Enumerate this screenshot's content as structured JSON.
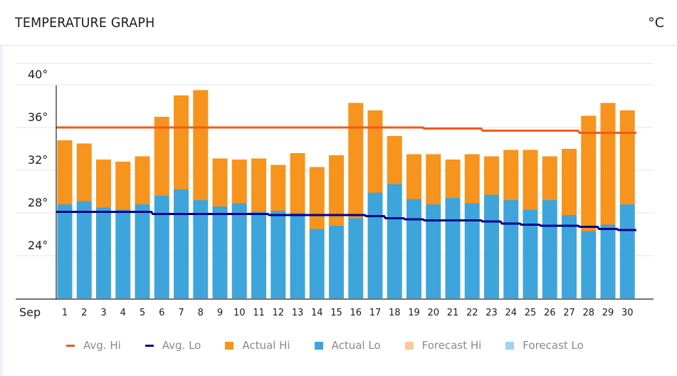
{
  "header": {
    "title": "TEMPERATURE GRAPH",
    "unit": "°C"
  },
  "colors": {
    "avg_hi": "#f05a1e",
    "avg_lo": "#00008b",
    "actual_hi": "#f7941d",
    "actual_lo": "#3da5dc",
    "forecast_hi": "#fbc89a",
    "forecast_lo": "#9fd3ee",
    "grid": "#e6e6e6"
  },
  "legend": [
    {
      "key": "avg_hi",
      "label": "Avg. Hi",
      "kind": "line"
    },
    {
      "key": "avg_lo",
      "label": "Avg. Lo",
      "kind": "line"
    },
    {
      "key": "actual_hi",
      "label": "Actual Hi",
      "kind": "box"
    },
    {
      "key": "actual_lo",
      "label": "Actual Lo",
      "kind": "box"
    },
    {
      "key": "forecast_hi",
      "label": "Forecast Hi",
      "kind": "box"
    },
    {
      "key": "forecast_lo",
      "label": "Forecast Lo",
      "kind": "box"
    }
  ],
  "chart_data": {
    "type": "bar",
    "title": "TEMPERATURE GRAPH",
    "unit": "°C",
    "month_label": "Sep",
    "categories": [
      "1",
      "2",
      "3",
      "4",
      "5",
      "6",
      "7",
      "8",
      "9",
      "10",
      "11",
      "12",
      "13",
      "14",
      "15",
      "16",
      "17",
      "18",
      "19",
      "20",
      "21",
      "22",
      "23",
      "24",
      "25",
      "26",
      "27",
      "28",
      "29",
      "30"
    ],
    "ylim": [
      20,
      42
    ],
    "yticks": [
      24,
      28,
      32,
      36,
      40
    ],
    "ytick_labels": [
      "24°",
      "28°",
      "32°",
      "36°",
      "40°"
    ],
    "grid": true,
    "legend_position": "bottom",
    "series": [
      {
        "name": "Actual Hi",
        "type": "bar",
        "values": [
          34.8,
          34.5,
          33.0,
          32.8,
          33.3,
          37.0,
          39.0,
          39.5,
          33.1,
          33.0,
          33.1,
          32.5,
          33.6,
          32.3,
          33.4,
          38.3,
          37.6,
          35.2,
          33.5,
          33.5,
          33.0,
          33.5,
          33.3,
          33.9,
          33.9,
          33.3,
          34.0,
          37.1,
          38.3,
          37.6
        ]
      },
      {
        "name": "Actual Lo",
        "type": "bar",
        "values": [
          28.8,
          29.1,
          28.5,
          28.3,
          28.8,
          29.6,
          30.2,
          29.2,
          28.6,
          28.9,
          28.1,
          28.2,
          28.0,
          26.5,
          26.8,
          27.5,
          29.9,
          30.7,
          29.3,
          28.8,
          29.4,
          28.9,
          29.7,
          29.2,
          28.3,
          29.2,
          27.8,
          26.3,
          26.9,
          28.8
        ]
      },
      {
        "name": "Avg. Hi",
        "type": "line",
        "values": [
          36.0,
          36.0,
          36.0,
          36.0,
          36.0,
          36.0,
          36.0,
          36.0,
          36.0,
          36.0,
          36.0,
          36.0,
          36.0,
          36.0,
          36.0,
          36.0,
          36.0,
          36.0,
          36.0,
          35.9,
          35.9,
          35.9,
          35.7,
          35.7,
          35.7,
          35.7,
          35.7,
          35.5,
          35.5,
          35.5
        ]
      },
      {
        "name": "Avg. Lo",
        "type": "line",
        "values": [
          28.1,
          28.1,
          28.1,
          28.1,
          28.1,
          27.9,
          27.9,
          27.9,
          27.9,
          27.9,
          27.9,
          27.8,
          27.8,
          27.8,
          27.8,
          27.8,
          27.7,
          27.5,
          27.4,
          27.3,
          27.3,
          27.3,
          27.2,
          27.0,
          26.9,
          26.8,
          26.8,
          26.7,
          26.5,
          26.4
        ]
      }
    ]
  }
}
